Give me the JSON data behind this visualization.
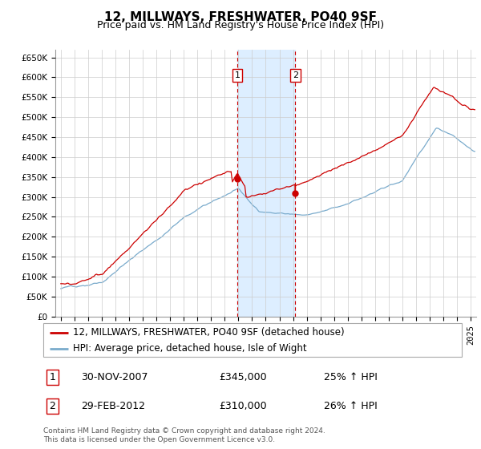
{
  "title": "12, MILLWAYS, FRESHWATER, PO40 9SF",
  "subtitle": "Price paid vs. HM Land Registry's House Price Index (HPI)",
  "yticks": [
    0,
    50000,
    100000,
    150000,
    200000,
    250000,
    300000,
    350000,
    400000,
    450000,
    500000,
    550000,
    600000,
    650000
  ],
  "ytick_labels": [
    "£0",
    "£50K",
    "£100K",
    "£150K",
    "£200K",
    "£250K",
    "£300K",
    "£350K",
    "£400K",
    "£450K",
    "£500K",
    "£550K",
    "£600K",
    "£650K"
  ],
  "ylim": [
    0,
    670000
  ],
  "xlim_min": 1994.6,
  "xlim_max": 2025.4,
  "sale1_date_num": 2007.92,
  "sale1_price": 345000,
  "sale1_label": "30-NOV-2007",
  "sale1_pct": "25%",
  "sale2_date_num": 2012.17,
  "sale2_price": 310000,
  "sale2_label": "29-FEB-2012",
  "sale2_pct": "26%",
  "red_color": "#cc0000",
  "blue_color": "#7aabcc",
  "shade_color": "#ddeeff",
  "grid_color": "#cccccc",
  "background_color": "#ffffff",
  "legend_line1": "12, MILLWAYS, FRESHWATER, PO40 9SF (detached house)",
  "legend_line2": "HPI: Average price, detached house, Isle of Wight",
  "footer": "Contains HM Land Registry data © Crown copyright and database right 2024.\nThis data is licensed under the Open Government Licence v3.0.",
  "title_fontsize": 11,
  "subtitle_fontsize": 9,
  "tick_fontsize": 7.5,
  "legend_fontsize": 8.5,
  "table_fontsize": 9,
  "footer_fontsize": 6.5
}
